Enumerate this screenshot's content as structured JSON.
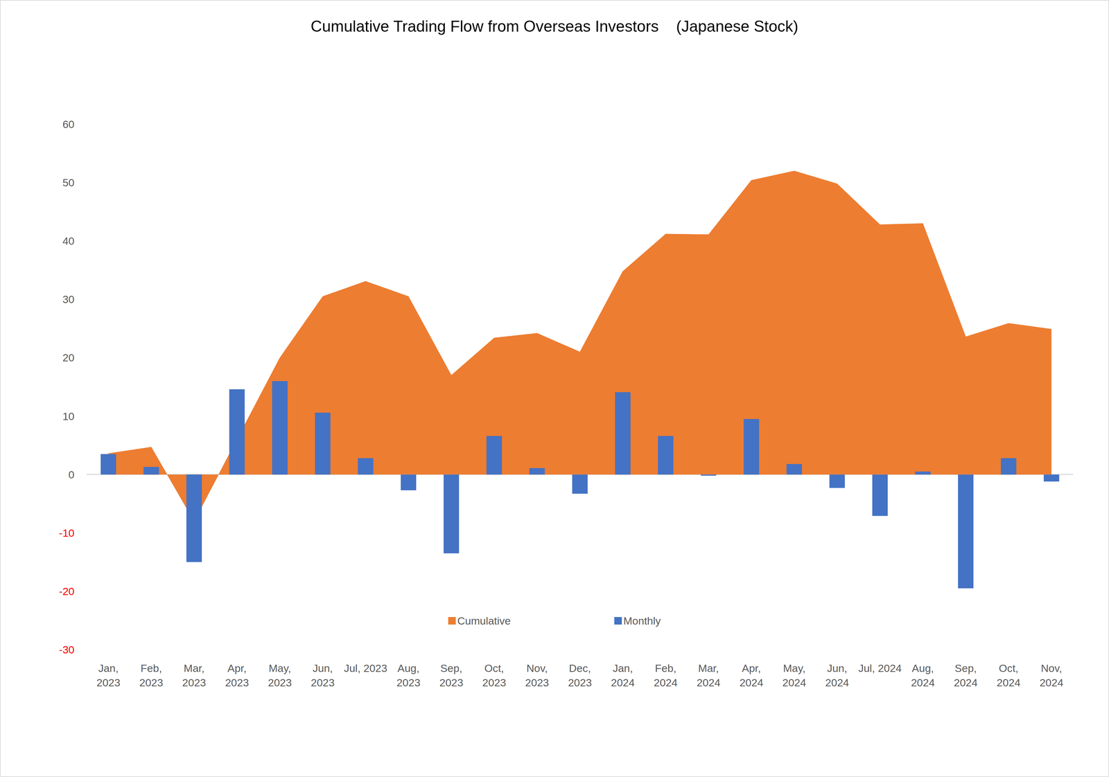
{
  "chart_data": {
    "type": "bar",
    "title": "Cumulative Trading Flow from Overseas Investors    (Japanese Stock)",
    "categories": [
      "Jan,\n2023",
      "Feb,\n2023",
      "Mar,\n2023",
      "Apr,\n2023",
      "May,\n2023",
      "Jun,\n2023",
      "Jul, 2023",
      "Aug,\n2023",
      "Sep,\n2023",
      "Oct,\n2023",
      "Nov,\n2023",
      "Dec,\n2023",
      "Jan,\n2024",
      "Feb,\n2024",
      "Mar,\n2024",
      "Apr,\n2024",
      "May,\n2024",
      "Jun,\n2024",
      "Jul, 2024",
      "Aug,\n2024",
      "Sep,\n2024",
      "Oct,\n2024",
      "Nov,\n2024"
    ],
    "series": [
      {
        "name": "Cumulative",
        "type": "area",
        "color": "#ED7D31",
        "values": [
          3.6,
          4.7,
          -8,
          6,
          20,
          30.5,
          33.1,
          30.5,
          17,
          23.4,
          24.2,
          21,
          34.8,
          41.2,
          41.1,
          50.4,
          52,
          49.8,
          42.8,
          43,
          23.6,
          25.9,
          24.9
        ]
      },
      {
        "name": "Monthly",
        "type": "bar",
        "color": "#4472C4",
        "values": [
          3.5,
          1.3,
          -15,
          14.6,
          16,
          10.6,
          2.8,
          -2.7,
          -13.5,
          6.6,
          1.1,
          -3.3,
          14.1,
          6.6,
          -0.2,
          9.5,
          1.8,
          -2.3,
          -7.1,
          0.5,
          -19.5,
          2.8,
          -1.2
        ]
      }
    ],
    "ylim": [
      -30,
      60
    ],
    "yticks": [
      -30,
      -20,
      -10,
      0,
      10,
      20,
      30,
      40,
      50,
      60
    ],
    "grid": false,
    "legend": "bottom"
  }
}
